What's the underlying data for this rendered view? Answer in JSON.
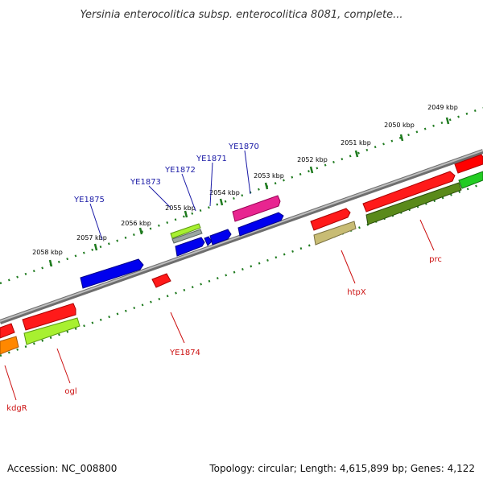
{
  "title": "Yersinia enterocolitica subsp. enterocolitica 8081, complete...",
  "accession": "Accession: NC_008800",
  "summary": "Topology: circular; Length: 4,615,899 bp; Genes: 4,122",
  "colors": {
    "backbone": "#8c8c8c",
    "tick": "#1e7a1e",
    "label_blue": "#1a1aa6",
    "label_red": "#cc1111"
  },
  "scale_ticks": [
    "2049 kbp",
    "2050 kbp",
    "2051 kbp",
    "2052 kbp",
    "2053 kbp",
    "2054 kbp",
    "2055 kbp",
    "2056 kbp",
    "2057 kbp",
    "2058 kbp"
  ],
  "labels_top": [
    "YE1870",
    "YE1871",
    "YE1872",
    "YE1873",
    "YE1875"
  ],
  "labels_bottom": [
    "prc",
    "htpX",
    "YE1874",
    "ogl",
    "kdgR"
  ],
  "features": [
    {
      "kind": "cds-forward",
      "color": "#ff0000"
    },
    {
      "kind": "cds-forward",
      "color": "#22cc22"
    },
    {
      "kind": "cds-forward",
      "color": "#e8208a"
    },
    {
      "kind": "cds-forward",
      "color": "#0000ee"
    },
    {
      "kind": "cds-forward",
      "color": "#99ee22"
    },
    {
      "kind": "cds-forward",
      "color": "#c8b870"
    },
    {
      "kind": "cds-forward",
      "color": "#5a8a1a"
    },
    {
      "kind": "cds-forward",
      "color": "#ff8800"
    }
  ]
}
